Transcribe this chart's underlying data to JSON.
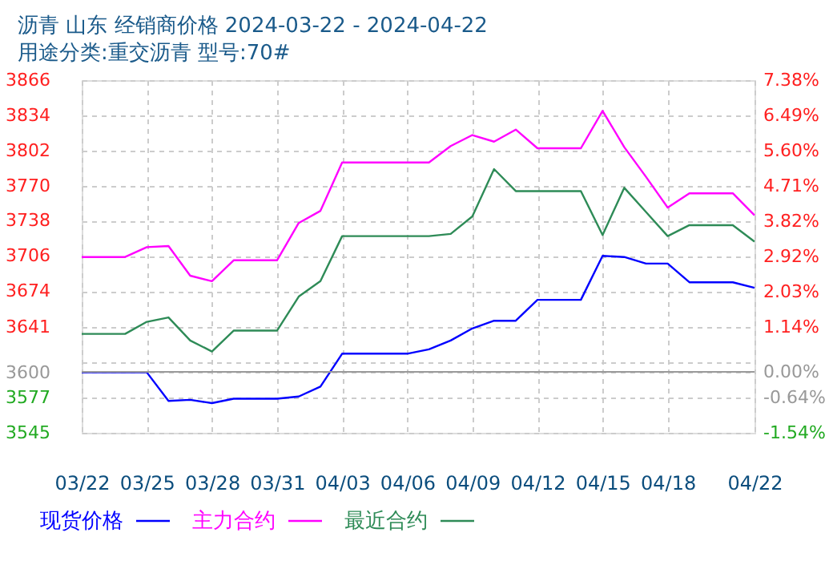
{
  "chart_data": {
    "type": "line",
    "title": "沥青 山东 经销商价格 2024-03-22 - 2024-04-22",
    "subtitle": "用途分类:重交沥青 型号:70#",
    "x": [
      "2024-03-22",
      "2024-03-23",
      "2024-03-24",
      "2024-03-25",
      "2024-03-26",
      "2024-03-27",
      "2024-03-28",
      "2024-03-29",
      "2024-03-30",
      "2024-03-31",
      "2024-04-01",
      "2024-04-02",
      "2024-04-03",
      "2024-04-04",
      "2024-04-05",
      "2024-04-06",
      "2024-04-07",
      "2024-04-08",
      "2024-04-09",
      "2024-04-10",
      "2024-04-11",
      "2024-04-12",
      "2024-04-13",
      "2024-04-14",
      "2024-04-15",
      "2024-04-16",
      "2024-04-17",
      "2024-04-18",
      "2024-04-19",
      "2024-04-20",
      "2024-04-21",
      "2024-04-22"
    ],
    "series": [
      {
        "name": "现货价格",
        "color": "#0000ff",
        "values": [
          3600,
          3600,
          3600,
          3600,
          3574,
          3575,
          3572,
          3576,
          3576,
          3576,
          3578,
          3587,
          3617,
          3617,
          3617,
          3617,
          3621,
          3629,
          3640,
          3647,
          3647,
          3666,
          3666,
          3666,
          3706,
          3705,
          3699,
          3699,
          3682,
          3682,
          3682,
          3677
        ]
      },
      {
        "name": "主力合约",
        "color": "#ff00ff",
        "values": [
          3705,
          3705,
          3705,
          3714,
          3715,
          3688,
          3683,
          3702,
          3702,
          3702,
          3736,
          3747,
          3791,
          3791,
          3791,
          3791,
          3791,
          3806,
          3816,
          3810,
          3821,
          3804,
          3804,
          3804,
          3838,
          3805,
          3778,
          3750,
          3763,
          3763,
          3763,
          3743
        ]
      },
      {
        "name": "最近合约",
        "color": "#2e8b57",
        "values": [
          3635,
          3635,
          3635,
          3646,
          3650,
          3629,
          3619,
          3638,
          3638,
          3638,
          3669,
          3683,
          3724,
          3724,
          3724,
          3724,
          3724,
          3726,
          3742,
          3785,
          3765,
          3765,
          3765,
          3765,
          3725,
          3768,
          3746,
          3724,
          3734,
          3734,
          3734,
          3719
        ]
      }
    ],
    "xlim": [
      "2024-03-22",
      "2024-04-22"
    ],
    "xticks": [
      {
        "value": "2024-03-22",
        "label": "03/22"
      },
      {
        "value": "2024-03-25",
        "label": "03/25"
      },
      {
        "value": "2024-03-28",
        "label": "03/28"
      },
      {
        "value": "2024-03-31",
        "label": "03/31"
      },
      {
        "value": "2024-04-03",
        "label": "04/03"
      },
      {
        "value": "2024-04-06",
        "label": "04/06"
      },
      {
        "value": "2024-04-09",
        "label": "04/09"
      },
      {
        "value": "2024-04-12",
        "label": "04/12"
      },
      {
        "value": "2024-04-15",
        "label": "04/15"
      },
      {
        "value": "2024-04-18",
        "label": "04/18"
      },
      {
        "value": "2024-04-22",
        "label": "04/22"
      }
    ],
    "ylim": [
      3545,
      3866
    ],
    "yticks": [
      3545,
      3577,
      3600,
      {
        "value": 3609,
        "label": null
      },
      3641,
      3674,
      3706,
      3738,
      3770,
      3802,
      3834,
      3866
    ],
    "y2lim": [
      -1.54,
      7.38
    ],
    "y2ticks": [
      {
        "value": -1.54,
        "label": "-1.54%"
      },
      {
        "value": -0.64,
        "label": "-0.64%"
      },
      {
        "value": 0,
        "label": "0.00%"
      },
      {
        "value": 1.14,
        "label": "1.14%"
      },
      {
        "value": 2.03,
        "label": "2.03%"
      },
      {
        "value": 2.92,
        "label": "2.92%"
      },
      {
        "value": 3.82,
        "label": "3.82%"
      },
      {
        "value": 4.71,
        "label": "4.71%"
      },
      {
        "value": 5.6,
        "label": "5.60%"
      },
      {
        "value": 6.49,
        "label": "6.49%"
      },
      {
        "value": 7.38,
        "label": "7.38%"
      }
    ],
    "ref_lines": [
      {
        "axis": "y2",
        "value": 0,
        "color": "#999999"
      }
    ],
    "grid": true,
    "legend": "bottom",
    "marker": "none",
    "line_style": "solid"
  }
}
